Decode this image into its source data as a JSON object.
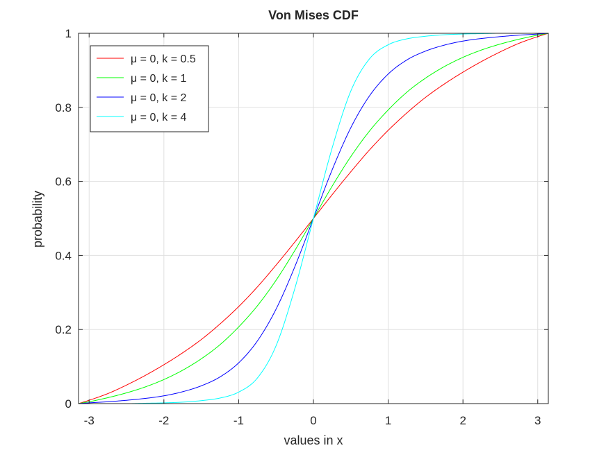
{
  "chart_data": {
    "type": "line",
    "title": "Von Mises CDF",
    "xlabel": "values in x",
    "ylabel": "probability",
    "xlim": [
      -3.1416,
      3.1416
    ],
    "ylim": [
      0,
      1
    ],
    "xticks": [
      -3,
      -2,
      -1,
      0,
      1,
      2,
      3
    ],
    "xtick_labels": [
      "-3",
      "-2",
      "-1",
      "0",
      "1",
      "2",
      "3"
    ],
    "yticks": [
      0,
      0.2,
      0.4,
      0.6,
      0.8,
      1
    ],
    "ytick_labels": [
      "0",
      "0.2",
      "0.4",
      "0.6",
      "0.8",
      "1"
    ],
    "grid": true,
    "legend_position": "top-left",
    "x": [
      -3.1416,
      -3.0,
      -2.75,
      -2.5,
      -2.25,
      -2.0,
      -1.75,
      -1.5,
      -1.25,
      -1.0,
      -0.75,
      -0.5,
      -0.25,
      0.0,
      0.25,
      0.5,
      0.75,
      1.0,
      1.25,
      1.5,
      1.75,
      2.0,
      2.25,
      2.5,
      2.75,
      3.0,
      3.1416
    ],
    "series": [
      {
        "name": "μ = 0, k = 0.5",
        "color": "#ff0000",
        "values": [
          0.0,
          0.009,
          0.027,
          0.05,
          0.076,
          0.105,
          0.137,
          0.173,
          0.215,
          0.262,
          0.315,
          0.374,
          0.436,
          0.5,
          0.564,
          0.626,
          0.685,
          0.738,
          0.785,
          0.827,
          0.863,
          0.895,
          0.924,
          0.95,
          0.973,
          0.991,
          1.0
        ]
      },
      {
        "name": "μ = 0, k = 1",
        "color": "#00ff00",
        "values": [
          0.0,
          0.005,
          0.016,
          0.029,
          0.045,
          0.065,
          0.09,
          0.121,
          0.159,
          0.207,
          0.264,
          0.333,
          0.413,
          0.5,
          0.587,
          0.667,
          0.736,
          0.793,
          0.841,
          0.879,
          0.91,
          0.935,
          0.955,
          0.971,
          0.984,
          0.995,
          1.0
        ]
      },
      {
        "name": "μ = 0, k = 2",
        "color": "#0000ff",
        "values": [
          0.0,
          0.002,
          0.005,
          0.009,
          0.014,
          0.021,
          0.032,
          0.048,
          0.072,
          0.11,
          0.169,
          0.255,
          0.369,
          0.5,
          0.631,
          0.745,
          0.831,
          0.89,
          0.928,
          0.952,
          0.968,
          0.979,
          0.986,
          0.991,
          0.995,
          0.998,
          1.0
        ]
      },
      {
        "name": "μ = 0, k = 4",
        "color": "#00ffff",
        "values": [
          0.0,
          0.0,
          0.0,
          0.0,
          0.001,
          0.002,
          0.004,
          0.008,
          0.015,
          0.031,
          0.069,
          0.156,
          0.31,
          0.5,
          0.69,
          0.844,
          0.931,
          0.969,
          0.985,
          0.992,
          0.996,
          0.998,
          0.999,
          1.0,
          1.0,
          1.0,
          1.0
        ]
      }
    ]
  }
}
